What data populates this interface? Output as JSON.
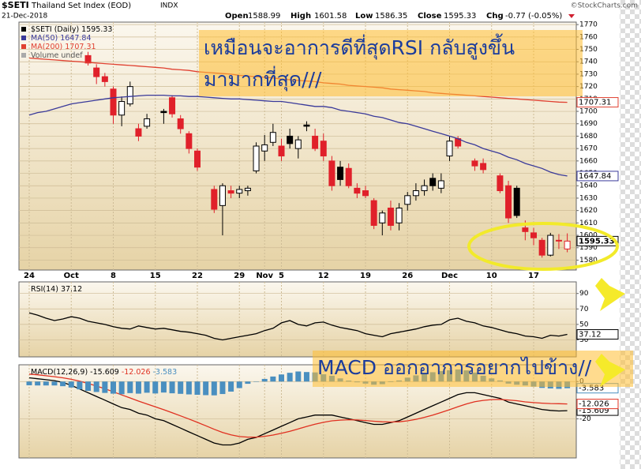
{
  "chart_data": [
    {
      "type": "candlestick",
      "title": "$SETI",
      "subtitle": "Thailand Set Index (EOD)",
      "exchange": "INDX",
      "date": "21-Dec-2018",
      "source": "©StockCharts.com",
      "header_labels": {
        "open": "Open",
        "high": "High",
        "low": "Low",
        "close": "Close",
        "change": "Chg"
      },
      "change": "-0.77 (-0.05%)",
      "name": "$SETI (Daily)",
      "volume_label": "Volume undef",
      "up_color": "#000000",
      "down_color": "#e0202a",
      "categories": [
        "24",
        null,
        null,
        null,
        null,
        "Oct",
        null,
        null,
        null,
        null,
        "8",
        null,
        null,
        null,
        null,
        "15",
        null,
        null,
        null,
        null,
        "22",
        null,
        null,
        null,
        null,
        "29",
        null,
        null,
        "Nov",
        null,
        "5",
        null,
        null,
        null,
        null,
        "12",
        null,
        null,
        null,
        null,
        "19",
        null,
        null,
        null,
        null,
        "26",
        null,
        null,
        null,
        null,
        "Dec",
        null,
        null,
        null,
        null,
        "10",
        null,
        null,
        null,
        null,
        "17",
        null,
        null,
        null,
        null
      ],
      "open": [
        null,
        null,
        null,
        null,
        null,
        null,
        null,
        1745,
        1735,
        1728,
        1718,
        1697,
        1706,
        1686,
        1688,
        null,
        1700,
        1711,
        1694,
        1682,
        1668,
        null,
        1637,
        1624,
        1636,
        1634,
        1636,
        1652,
        1668,
        1675,
        1672,
        1680,
        1670,
        1689,
        1680,
        1676,
        1660,
        1655,
        1654,
        1638,
        1636,
        1628,
        1610,
        1622,
        1610,
        1625,
        1632,
        1636,
        1646,
        1638,
        1664,
        1678,
        null,
        1660,
        1658,
        null,
        1648,
        1640,
        1638,
        1606,
        1602,
        1596,
        1584,
        1596,
        1588.99
      ],
      "high": [
        null,
        null,
        null,
        null,
        null,
        null,
        null,
        1748,
        1738,
        1731,
        1720,
        1712,
        1724,
        1690,
        1698,
        null,
        1702,
        1713,
        1697,
        1684,
        1670,
        null,
        1640,
        1642,
        1640,
        1640,
        1640,
        1675,
        1681,
        1690,
        1678,
        1686,
        1680,
        1692,
        1686,
        1682,
        1664,
        1660,
        1658,
        1642,
        1640,
        1630,
        1620,
        1628,
        1626,
        1635,
        1642,
        1645,
        1650,
        1650,
        1680,
        1680,
        null,
        1662,
        1662,
        null,
        1650,
        1644,
        1640,
        1612,
        1606,
        1598,
        1602,
        1601,
        1601.58
      ],
      "low": [
        null,
        null,
        null,
        null,
        null,
        null,
        null,
        1737,
        1722,
        1720,
        1690,
        1688,
        1704,
        1676,
        1686,
        null,
        1690,
        1695,
        1682,
        1666,
        1652,
        null,
        1618,
        1600,
        1630,
        1630,
        1632,
        1650,
        1660,
        1672,
        1660,
        1670,
        1662,
        1684,
        1668,
        1660,
        1636,
        1640,
        1638,
        1630,
        1630,
        1605,
        1600,
        1604,
        1604,
        1620,
        1628,
        1632,
        1636,
        1634,
        1660,
        1670,
        null,
        1652,
        1650,
        null,
        1634,
        1610,
        1614,
        1596,
        1592,
        1582,
        1583,
        1589,
        1586.35
      ],
      "close": [
        null,
        null,
        null,
        null,
        null,
        null,
        null,
        1739,
        1728,
        1724,
        1697,
        1708,
        1720,
        1680,
        1694,
        null,
        1699,
        1698,
        1686,
        1670,
        1655,
        null,
        1621,
        1640,
        1634,
        1637,
        1638,
        1672,
        1673,
        1683,
        1664,
        1674,
        1677,
        1688,
        1670,
        1664,
        1640,
        1645,
        1640,
        1634,
        1632,
        1608,
        1618,
        1608,
        1622,
        1632,
        1636,
        1640,
        1640,
        1644,
        1676,
        1672,
        null,
        1656,
        1653,
        null,
        1636,
        1614,
        1616,
        1603,
        1598,
        1584,
        1600,
        1596,
        1595.33
      ],
      "series": [
        {
          "name": "MA(50)",
          "color": "#3a3a9a",
          "values": [
            1697,
            1699,
            1700,
            1702,
            1704,
            1706,
            1707,
            1708,
            1709,
            1710,
            1711,
            1711.5,
            1712,
            1712.5,
            1713,
            1713,
            1713,
            1712.5,
            1712.5,
            1712,
            1712,
            1711.5,
            1711,
            1710.5,
            1710,
            1710,
            1709.5,
            1709,
            1708.5,
            1708,
            1708,
            1707,
            1706,
            1705,
            1704,
            1704,
            1703,
            1701,
            1700,
            1699,
            1698,
            1696,
            1695,
            1693,
            1691,
            1690,
            1688,
            1686,
            1684,
            1682,
            1680,
            1678,
            1675,
            1673,
            1670,
            1668,
            1666,
            1663,
            1661,
            1658,
            1656,
            1654,
            1651,
            1649,
            1647.84
          ]
        },
        {
          "name": "MA(200)",
          "color": "#e04030",
          "values": [
            1743,
            1742.5,
            1742,
            1741.5,
            1741,
            1740.5,
            1740,
            1739.5,
            1739,
            1738.5,
            1738,
            1737.5,
            1737,
            1736.5,
            1736,
            1735.5,
            1735,
            1734,
            1733.5,
            1733,
            1732,
            1731.5,
            1731,
            1730.5,
            1730,
            1729,
            1728.5,
            1728,
            1727.5,
            1727,
            1726,
            1725.5,
            1725,
            1724.5,
            1724,
            1723,
            1722.5,
            1722,
            1721,
            1720.5,
            1720,
            1719.5,
            1719,
            1718,
            1717.5,
            1717,
            1716.5,
            1716,
            1715,
            1714.5,
            1714,
            1713.5,
            1713,
            1712.5,
            1712,
            1711.5,
            1711,
            1710.5,
            1710,
            1709.5,
            1709,
            1708.5,
            1708,
            1707.5,
            1707.31
          ]
        }
      ],
      "ylim": [
        1572,
        1772
      ],
      "yticks": [
        1580,
        1590,
        1600,
        1610,
        1620,
        1630,
        1640,
        1650,
        1660,
        1670,
        1680,
        1690,
        1700,
        1710,
        1720,
        1730,
        1740,
        1750,
        1760,
        1770
      ],
      "grid": true,
      "annotations": [
        "เหมือนจะอาการดีที่สุดRSI กลับสูงขึ้น",
        "มามากที่สุด///"
      ]
    },
    {
      "type": "line",
      "series": [
        {
          "name": "RSI(14)",
          "color": "#000000",
          "values": [
            65,
            62,
            58,
            55,
            57,
            60,
            58,
            54,
            52,
            50,
            47,
            45,
            44,
            48,
            46,
            44,
            45,
            43,
            41,
            40,
            38,
            36,
            32,
            30,
            32,
            34,
            36,
            38,
            42,
            45,
            52,
            55,
            50,
            48,
            52,
            53,
            49,
            46,
            44,
            42,
            38,
            36,
            34,
            38,
            40,
            42,
            44,
            47,
            49,
            50,
            56,
            58,
            54,
            52,
            48,
            46,
            43,
            40,
            38,
            35,
            34,
            32,
            36,
            35,
            37.12
          ]
        }
      ],
      "ylim": [
        8,
        105
      ],
      "yticks": [
        30,
        50,
        70,
        90
      ],
      "grid": true
    },
    {
      "type": "line",
      "series": [
        {
          "name": "MACD(12,26,9)",
          "color": "#000000",
          "values": [
            2,
            1.5,
            1,
            0.5,
            -0.5,
            -2,
            -4,
            -6,
            -8,
            -10,
            -12,
            -14,
            -15,
            -17,
            -18,
            -20,
            -21,
            -23,
            -25,
            -27,
            -29,
            -31,
            -33,
            -34,
            -34,
            -33,
            -31,
            -30,
            -28,
            -26,
            -24,
            -22,
            -20,
            -19,
            -18,
            -18,
            -18,
            -19,
            -20,
            -21,
            -22,
            -23,
            -23,
            -22,
            -21,
            -19,
            -17,
            -15,
            -13,
            -11,
            -9,
            -7,
            -6,
            -6,
            -7,
            -8,
            -9,
            -11,
            -12,
            -13,
            -14,
            -15,
            -15.5,
            -15.8,
            -15.609
          ]
        },
        {
          "color": "#e03020",
          "values": [
            4,
            3.6,
            3.1,
            2.6,
            2,
            1.2,
            0.2,
            -1,
            -2.4,
            -3.9,
            -5.5,
            -7.2,
            -8.8,
            -10.5,
            -12,
            -13.6,
            -15.1,
            -16.7,
            -18.4,
            -20.1,
            -21.9,
            -23.7,
            -25.6,
            -27.3,
            -28.6,
            -29.5,
            -29.8,
            -29.8,
            -29.4,
            -28.7,
            -27.8,
            -26.7,
            -25.4,
            -24.1,
            -22.9,
            -21.9,
            -21.1,
            -20.7,
            -20.5,
            -20.6,
            -20.9,
            -21.3,
            -21.6,
            -21.7,
            -21.6,
            -21.1,
            -20.3,
            -19.2,
            -18,
            -16.6,
            -15.1,
            -13.5,
            -12,
            -10.8,
            -10.1,
            -9.7,
            -9.6,
            -9.9,
            -10.3,
            -10.9,
            -11.3,
            -11.6,
            -11.8,
            -11.9,
            -12.026
          ]
        },
        {
          "type": "bar",
          "color": "#4a8fc0",
          "values": [
            -2,
            -2.1,
            -2.1,
            -2.1,
            -2.5,
            -3.2,
            -4.2,
            -5,
            -5.6,
            -6.1,
            -6.5,
            -6.8,
            -6.2,
            -6.5,
            -6,
            -6.4,
            -5.9,
            -6.3,
            -6.6,
            -6.9,
            -7.1,
            -7.3,
            -7.4,
            -6.7,
            -5.4,
            -3.5,
            -1.2,
            -0.2,
            1.4,
            2.7,
            3.8,
            4.7,
            5.4,
            5.1,
            4.9,
            3.9,
            3.1,
            1.7,
            0.5,
            -0.4,
            -1.1,
            -1.7,
            -1.4,
            -0.3,
            0.6,
            2.1,
            3.3,
            4.2,
            5,
            5.6,
            6.1,
            6.5,
            6,
            4.8,
            3.1,
            1.7,
            0.6,
            -1.1,
            -1.7,
            -2.1,
            -2.7,
            -3.4,
            -3.7,
            -3.9,
            -3.583
          ]
        }
      ],
      "ylim": [
        -41,
        9
      ],
      "yticks": [
        -20,
        0
      ],
      "grid": true,
      "annotations": [
        "MACD ออกอาการอยากไปข้าง//"
      ]
    }
  ]
}
